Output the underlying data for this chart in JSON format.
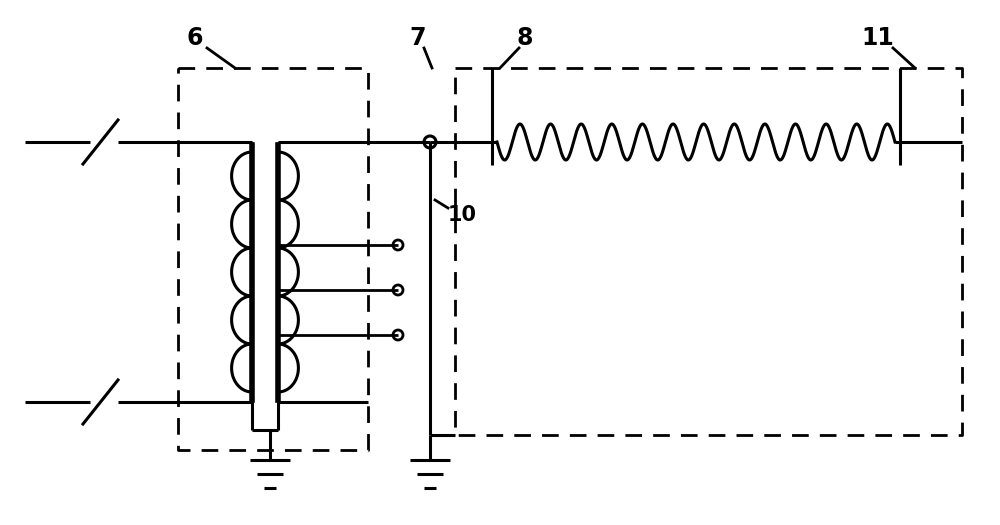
{
  "background_color": "#ffffff",
  "line_color": "#000000",
  "lw": 2.0,
  "lw_thick": 2.2,
  "label_fontsize": 17,
  "fig_width": 10.0,
  "fig_height": 5.25
}
